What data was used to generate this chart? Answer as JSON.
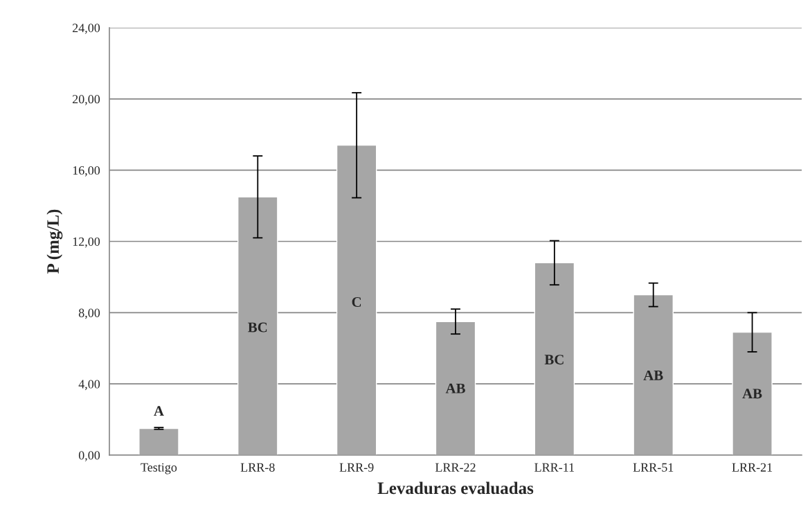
{
  "chart_data": {
    "type": "bar",
    "xlabel": "Levaduras evaluadas",
    "ylabel": "P (mg/L)",
    "categories": [
      "Testigo",
      "LRR-8",
      "LRR-9",
      "LRR-22",
      "LRR-11",
      "LRR-51",
      "LRR-21"
    ],
    "values": [
      1.5,
      14.5,
      17.4,
      7.5,
      10.8,
      9.0,
      6.9
    ],
    "errors": [
      0.05,
      2.3,
      2.95,
      0.7,
      1.24,
      0.66,
      1.1
    ],
    "color": "#a6a6a6",
    "ylim": [
      0,
      24
    ],
    "yticks": [
      {
        "value": 0,
        "label": "0,00"
      },
      {
        "value": 4,
        "label": "4,00"
      },
      {
        "value": 8,
        "label": "8,00"
      },
      {
        "value": 12,
        "label": "12,00"
      },
      {
        "value": 16,
        "label": "16,00"
      },
      {
        "value": 20,
        "label": "20,00"
      },
      {
        "value": 24,
        "label": "24,00"
      }
    ],
    "grid": "y",
    "annotations": [
      "A",
      "BC",
      "C",
      "AB",
      "BC",
      "AB",
      "AB"
    ]
  }
}
